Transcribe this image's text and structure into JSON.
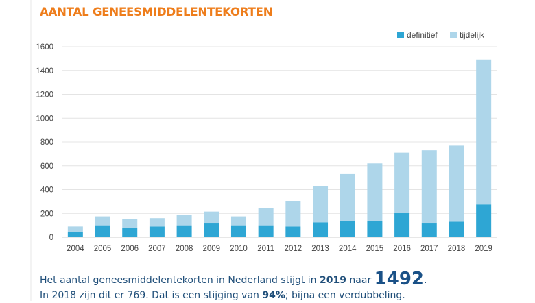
{
  "colors": {
    "definitief": "#2ea6d4",
    "tijdelijk": "#aed6ea",
    "title": "#ee7d1b",
    "caption": "#1f4e79"
  },
  "chart_data": {
    "type": "bar",
    "stacked": true,
    "title": "AANTAL GENEESMIDDELENTEKORTEN",
    "xlabel": "",
    "ylabel": "",
    "ylim": [
      0,
      1600
    ],
    "yticks": [
      0,
      200,
      400,
      600,
      800,
      1000,
      1200,
      1400,
      1600
    ],
    "grid": true,
    "legend_position": "top-right",
    "categories": [
      "2004",
      "2005",
      "2006",
      "2007",
      "2008",
      "2009",
      "2010",
      "2011",
      "2012",
      "2013",
      "2014",
      "2015",
      "2016",
      "2017",
      "2018",
      "2019"
    ],
    "series": [
      {
        "name": "definitief",
        "values": [
          45,
          100,
          75,
          90,
          100,
          115,
          100,
          100,
          90,
          125,
          135,
          135,
          205,
          115,
          130,
          275
        ]
      },
      {
        "name": "tijdelijk",
        "values": [
          45,
          75,
          75,
          70,
          90,
          100,
          75,
          145,
          215,
          305,
          395,
          485,
          505,
          615,
          639,
          1217
        ]
      }
    ]
  },
  "caption": {
    "line1_pre": "Het aantal geneesmiddelentekorten in Nederland stijgt in ",
    "line1_year": "2019",
    "line1_mid": " naar ",
    "line1_value": "1492",
    "line1_end": ".",
    "line2_pre": "In 2018 zijn dit er 769. Dat is een stijging van ",
    "line2_pct": "94%",
    "line2_end": "; bijna een verdubbeling."
  }
}
